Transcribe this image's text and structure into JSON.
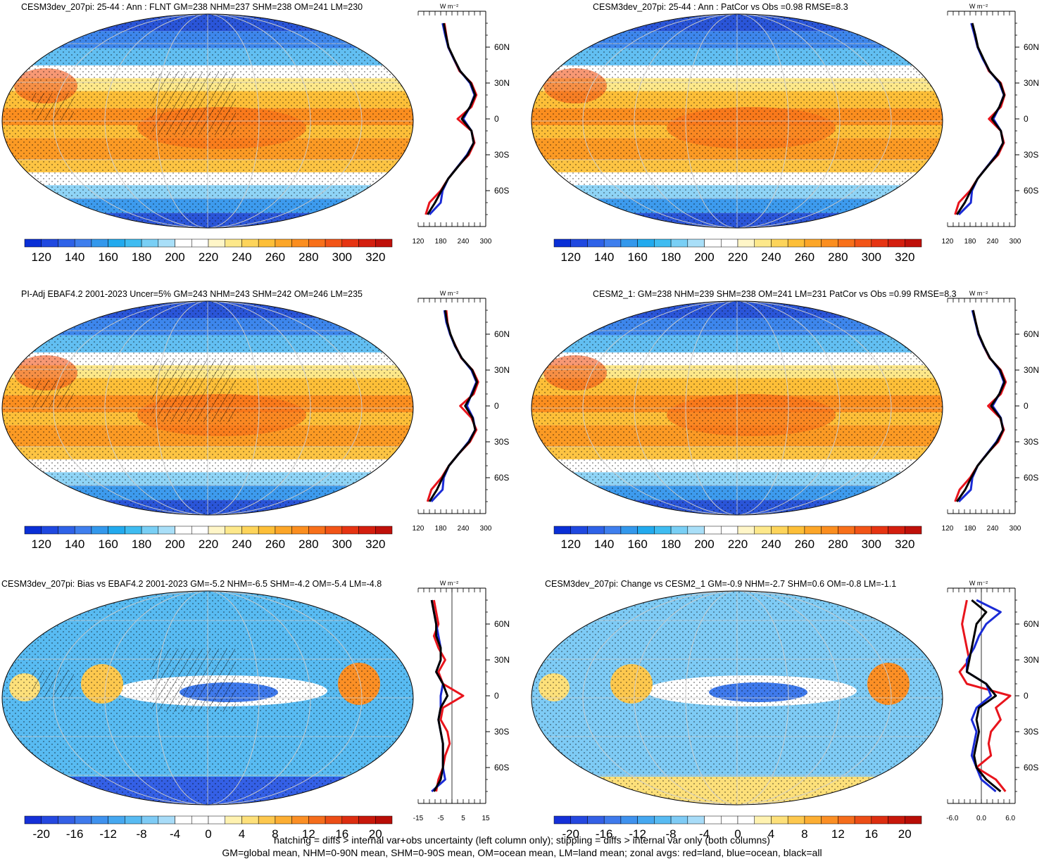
{
  "chart_data": [
    {
      "type": "heatmap",
      "title": "CESM3dev_207pi: 25-44 : Ann : FLNT GM=238 NHM=237 SHM=238 OM=241 LM=230",
      "colorbar_ticks": [
        "120",
        "140",
        "160",
        "180",
        "200",
        "220",
        "240",
        "260",
        "280",
        "300",
        "320"
      ],
      "zonal": {
        "unit": "W m⁻²",
        "xticks": [
          "120",
          "180",
          "240",
          "300"
        ],
        "xlim": [
          120,
          300
        ],
        "yticks": [
          "60N",
          "30N",
          "0",
          "30S",
          "60S"
        ],
        "lat": [
          80,
          70,
          60,
          50,
          40,
          30,
          20,
          10,
          0,
          -10,
          -20,
          -30,
          -40,
          -50,
          -60,
          -70,
          -80
        ],
        "series": [
          {
            "name": "land",
            "color": "#e8141c",
            "values": [
              190,
              195,
              200,
              215,
              230,
              262,
              275,
              262,
              225,
              262,
              270,
              255,
              225,
              200,
              180,
              150,
              140
            ]
          },
          {
            "name": "ocean",
            "color": "#1a2bd6",
            "values": [
              185,
              192,
              200,
              215,
              232,
              258,
              270,
              258,
              240,
              262,
              268,
              250,
              225,
              200,
              185,
              180,
              150
            ]
          },
          {
            "name": "all",
            "color": "#000000",
            "values": [
              188,
              194,
              201,
              216,
              232,
              260,
              272,
              258,
              236,
              262,
              268,
              252,
              226,
              200,
              182,
              165,
              145
            ]
          }
        ]
      }
    },
    {
      "type": "heatmap",
      "title": "CESM3dev_207pi: 25-44 : Ann : PatCor vs Obs =0.98 RMSE=8.3",
      "colorbar_ticks": [
        "120",
        "140",
        "160",
        "180",
        "200",
        "220",
        "240",
        "260",
        "280",
        "300",
        "320"
      ],
      "zonal": {
        "unit": "W m⁻²",
        "xticks": [
          "120",
          "180",
          "240",
          "300"
        ],
        "xlim": [
          120,
          300
        ],
        "yticks": [
          "60N",
          "30N",
          "0",
          "30S",
          "60S"
        ],
        "lat": [
          80,
          70,
          60,
          50,
          40,
          30,
          20,
          10,
          0,
          -10,
          -20,
          -30,
          -40,
          -50,
          -60,
          -70,
          -80
        ],
        "series": [
          {
            "name": "land",
            "color": "#e8141c",
            "values": [
              185,
              192,
              200,
              215,
              230,
              262,
              272,
              262,
              230,
              262,
              270,
              255,
              225,
              200,
              180,
              150,
              140
            ]
          },
          {
            "name": "ocean",
            "color": "#1a2bd6",
            "values": [
              183,
              192,
              200,
              214,
              232,
              258,
              270,
              258,
              242,
              262,
              268,
              250,
              225,
              200,
              185,
              182,
              150
            ]
          },
          {
            "name": "all",
            "color": "#000000",
            "values": [
              186,
              194,
              201,
              216,
              232,
              260,
              271,
              258,
              238,
              262,
              268,
              252,
              226,
              200,
              182,
              166,
              145
            ]
          }
        ]
      }
    },
    {
      "type": "heatmap",
      "title": "PI-Adj EBAF4.2 2001-2023 Uncer=5% GM=243 NHM=243 SHM=242 OM=246 LM=235",
      "colorbar_ticks": [
        "120",
        "140",
        "160",
        "180",
        "200",
        "220",
        "240",
        "260",
        "280",
        "300",
        "320"
      ],
      "zonal": {
        "unit": "W m⁻²",
        "xticks": [
          "120",
          "180",
          "240",
          "300"
        ],
        "xlim": [
          120,
          300
        ],
        "yticks": [
          "60N",
          "30N",
          "0",
          "30S",
          "60S"
        ],
        "lat": [
          80,
          70,
          60,
          50,
          40,
          30,
          20,
          10,
          0,
          -10,
          -20,
          -30,
          -40,
          -50,
          -60,
          -70,
          -80
        ],
        "series": [
          {
            "name": "land",
            "color": "#e8141c",
            "values": [
              195,
              198,
              205,
              220,
              235,
              265,
              280,
              268,
              232,
              262,
              275,
              258,
              228,
              202,
              182,
              155,
              145
            ]
          },
          {
            "name": "ocean",
            "color": "#1a2bd6",
            "values": [
              190,
              195,
              205,
              218,
              236,
              262,
              275,
              262,
              250,
              266,
              272,
              254,
              228,
              202,
              188,
              185,
              155
            ]
          },
          {
            "name": "all",
            "color": "#000000",
            "values": [
              192,
              197,
              206,
              219,
              236,
              264,
              277,
              264,
              245,
              265,
              272,
              256,
              228,
              202,
              185,
              170,
              150
            ]
          }
        ]
      }
    },
    {
      "type": "heatmap",
      "title": "CESM2_1: GM=238 NHM=239 SHM=238 OM=241 LM=231 PatCor vs Obs =0.99 RMSE=8.3",
      "colorbar_ticks": [
        "120",
        "140",
        "160",
        "180",
        "200",
        "220",
        "240",
        "260",
        "280",
        "300",
        "320"
      ],
      "zonal": {
        "unit": "W m⁻²",
        "xticks": [
          "120",
          "180",
          "240",
          "300"
        ],
        "xlim": [
          120,
          300
        ],
        "yticks": [
          "60N",
          "30N",
          "0",
          "30S",
          "60S"
        ],
        "lat": [
          80,
          70,
          60,
          50,
          40,
          30,
          20,
          10,
          0,
          -10,
          -20,
          -30,
          -40,
          -50,
          -60,
          -70,
          -80
        ],
        "series": [
          {
            "name": "land",
            "color": "#e8141c",
            "values": [
              188,
              195,
              202,
              216,
              232,
              262,
              275,
              262,
              228,
              260,
              270,
              255,
              225,
              200,
              180,
              152,
              140
            ]
          },
          {
            "name": "ocean",
            "color": "#1a2bd6",
            "values": [
              186,
              194,
              202,
              216,
              233,
              258,
              270,
              258,
              240,
              262,
              268,
              250,
              225,
              200,
              186,
              182,
              150
            ]
          },
          {
            "name": "all",
            "color": "#000000",
            "values": [
              188,
              195,
              203,
              217,
              233,
              260,
              272,
              258,
              236,
              261,
              268,
              252,
              226,
              200,
              183,
              167,
              145
            ]
          }
        ]
      }
    },
    {
      "type": "heatmap",
      "title": "CESM3dev_207pi: Bias vs EBAF4.2 2001-2023 GM=-5.2 NHM=-6.5 SHM=-4.2 OM=-5.4 LM=-4.8",
      "colorbar_ticks": [
        "-20",
        "-16",
        "-12",
        "-8",
        "-4",
        "0",
        "4",
        "8",
        "12",
        "16",
        "20"
      ],
      "zonal": {
        "unit": "W m⁻²",
        "xticks": [
          "-15",
          "-5",
          "5",
          "15"
        ],
        "xlim": [
          -15,
          15
        ],
        "yticks": [
          "60N",
          "30N",
          "0",
          "30S",
          "60S"
        ],
        "lat": [
          80,
          70,
          60,
          50,
          40,
          30,
          20,
          10,
          0,
          -10,
          -20,
          -30,
          -40,
          -50,
          -60,
          -70,
          -80
        ],
        "series": [
          {
            "name": "land",
            "color": "#e8141c",
            "values": [
              -8,
              -7,
              -6,
              -8,
              -6,
              -3,
              -6,
              -4,
              5,
              -4,
              -5,
              -2,
              -1,
              -3,
              -4,
              -6,
              -7
            ]
          },
          {
            "name": "ocean",
            "color": "#1a2bd6",
            "values": [
              -9,
              -8,
              -7,
              -6,
              -5,
              -5,
              -7,
              -4,
              -5,
              -5,
              -6,
              -5,
              -4,
              -4,
              -4,
              -3,
              -9
            ]
          },
          {
            "name": "all",
            "color": "#000000",
            "values": [
              -9,
              -8,
              -7,
              -7,
              -5,
              -5,
              -7,
              -4,
              -2,
              -5,
              -6,
              -5,
              -4,
              -4,
              -4,
              -5,
              -8
            ]
          }
        ]
      }
    },
    {
      "type": "heatmap",
      "title": "CESM3dev_207pi: Change vs CESM2_1 GM=-0.9 NHM=-2.7 SHM=0.6 OM=-0.8 LM=-1.1",
      "colorbar_ticks": [
        "-20",
        "-16",
        "-12",
        "-8",
        "-4",
        "0",
        "4",
        "8",
        "12",
        "16",
        "20"
      ],
      "zonal": {
        "unit": "W m⁻²",
        "xticks": [
          "-6.0",
          "0.0",
          "6.0"
        ],
        "xlim": [
          -7,
          7
        ],
        "yticks": [
          "60N",
          "30N",
          "0",
          "30S",
          "60S"
        ],
        "lat": [
          80,
          70,
          60,
          50,
          40,
          30,
          20,
          10,
          0,
          -10,
          -20,
          -30,
          -40,
          -50,
          -60,
          -70,
          -80
        ],
        "series": [
          {
            "name": "land",
            "color": "#e8141c",
            "values": [
              -3,
              -3.5,
              -4,
              -3.5,
              -3,
              -2.5,
              -4.5,
              -3,
              6,
              3,
              4,
              2,
              1.5,
              2,
              -1,
              3,
              5
            ]
          },
          {
            "name": "ocean",
            "color": "#1a2bd6",
            "values": [
              -1,
              4,
              1,
              -0.5,
              -1.5,
              -3,
              -3,
              1,
              2,
              -1,
              -2,
              -1,
              -1.5,
              -2,
              -1,
              0,
              3
            ]
          },
          {
            "name": "all",
            "color": "#000000",
            "values": [
              -2,
              1,
              -1,
              -1.5,
              -2,
              -2.5,
              -3,
              1,
              3,
              -0.5,
              -1,
              -0.5,
              -1,
              -1.5,
              -1,
              1,
              4
            ]
          }
        ]
      }
    }
  ],
  "footer": {
    "line1": "hatching = diffs > internal var+obs uncertainty (left column only); stippling = diffs > internal var only (both columns)",
    "line2": "GM=global mean, NHM=0-90N mean, SHM=0-90S mean, OM=ocean mean, LM=land mean; zonal avgs: red=land, blue=ocean, black=all"
  }
}
